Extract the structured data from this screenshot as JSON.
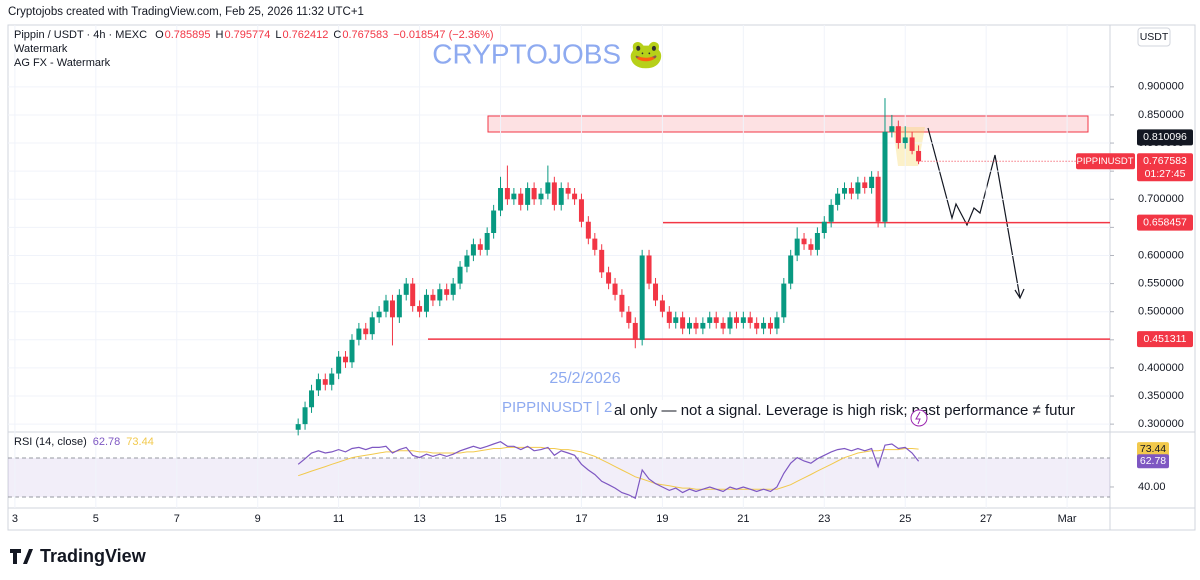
{
  "header": {
    "caption": "Cryptojobs created with TradingView.com, Feb 25, 2026 11:32 UTC+1"
  },
  "chart_data": {
    "type": "candlestick",
    "symbol": "Pippin / USDT · 4h · MEXC",
    "ohlc_letters": [
      "O",
      "H",
      "L",
      "C"
    ],
    "change_label": "−0.018547 (−2.36%)",
    "indicators_text": [
      "Watermark",
      "AG FX - Watermark"
    ],
    "watermark": "CRYPTOJOBS 🐸",
    "date_text": "25/2/2026",
    "symbol_text": "PIPPINUSDT | 2",
    "disclaimer": "al only — not a signal. Leverage is high risk; past performance ≠ futur",
    "currency": "USDT",
    "symbol_badge": "PIPPINUSDT",
    "countdown": "01:27:45",
    "marker_price": 0.810096,
    "levels": [
      0.658457,
      0.451311
    ],
    "level_color": "#f23645",
    "up_color": "#089981",
    "down_color": "#f23645",
    "x": [
      10,
      10.17,
      10.33,
      10.5,
      10.67,
      10.83,
      11,
      11.17,
      11.33,
      11.5,
      11.67,
      11.83,
      12,
      12.17,
      12.33,
      12.5,
      12.67,
      12.83,
      13,
      13.17,
      13.33,
      13.5,
      13.67,
      13.83,
      14,
      14.17,
      14.33,
      14.5,
      14.67,
      14.83,
      15,
      15.17,
      15.33,
      15.5,
      15.67,
      15.83,
      16,
      16.17,
      16.33,
      16.5,
      16.67,
      16.83,
      17,
      17.17,
      17.33,
      17.5,
      17.67,
      17.83,
      18,
      18.17,
      18.33,
      18.5,
      18.67,
      18.83,
      19,
      19.17,
      19.33,
      19.5,
      19.67,
      19.83,
      20,
      20.17,
      20.33,
      20.5,
      20.67,
      20.83,
      21,
      21.17,
      21.33,
      21.5,
      21.67,
      21.83,
      22,
      22.17,
      22.33,
      22.5,
      22.67,
      22.83,
      23,
      23.17,
      23.33,
      23.5,
      23.67,
      23.83,
      24,
      24.17,
      24.33,
      24.5,
      24.67,
      24.83,
      25,
      25.17,
      25.33
    ],
    "candles": [
      [
        0.29,
        0.31,
        0.28,
        0.3
      ],
      [
        0.3,
        0.34,
        0.29,
        0.33
      ],
      [
        0.33,
        0.37,
        0.32,
        0.36
      ],
      [
        0.36,
        0.39,
        0.35,
        0.38
      ],
      [
        0.38,
        0.39,
        0.36,
        0.37
      ],
      [
        0.37,
        0.4,
        0.36,
        0.39
      ],
      [
        0.39,
        0.43,
        0.38,
        0.42
      ],
      [
        0.42,
        0.43,
        0.4,
        0.41
      ],
      [
        0.41,
        0.46,
        0.4,
        0.45
      ],
      [
        0.45,
        0.48,
        0.44,
        0.47
      ],
      [
        0.47,
        0.48,
        0.45,
        0.46
      ],
      [
        0.46,
        0.5,
        0.45,
        0.49
      ],
      [
        0.49,
        0.51,
        0.48,
        0.5
      ],
      [
        0.5,
        0.53,
        0.49,
        0.52
      ],
      [
        0.52,
        0.53,
        0.44,
        0.49
      ],
      [
        0.49,
        0.54,
        0.48,
        0.53
      ],
      [
        0.53,
        0.56,
        0.52,
        0.55
      ],
      [
        0.55,
        0.56,
        0.5,
        0.51
      ],
      [
        0.51,
        0.52,
        0.49,
        0.5
      ],
      [
        0.5,
        0.54,
        0.49,
        0.53
      ],
      [
        0.53,
        0.54,
        0.51,
        0.52
      ],
      [
        0.52,
        0.55,
        0.51,
        0.54
      ],
      [
        0.54,
        0.55,
        0.52,
        0.53
      ],
      [
        0.53,
        0.56,
        0.52,
        0.55
      ],
      [
        0.55,
        0.59,
        0.54,
        0.58
      ],
      [
        0.58,
        0.61,
        0.57,
        0.6
      ],
      [
        0.6,
        0.63,
        0.59,
        0.62
      ],
      [
        0.62,
        0.63,
        0.6,
        0.61
      ],
      [
        0.61,
        0.65,
        0.6,
        0.64
      ],
      [
        0.64,
        0.69,
        0.63,
        0.68
      ],
      [
        0.68,
        0.74,
        0.67,
        0.72
      ],
      [
        0.72,
        0.76,
        0.69,
        0.7
      ],
      [
        0.7,
        0.72,
        0.69,
        0.71
      ],
      [
        0.71,
        0.72,
        0.68,
        0.69
      ],
      [
        0.69,
        0.73,
        0.68,
        0.72
      ],
      [
        0.72,
        0.73,
        0.69,
        0.7
      ],
      [
        0.7,
        0.72,
        0.69,
        0.71
      ],
      [
        0.71,
        0.76,
        0.7,
        0.73
      ],
      [
        0.73,
        0.74,
        0.68,
        0.69
      ],
      [
        0.69,
        0.73,
        0.68,
        0.72
      ],
      [
        0.72,
        0.73,
        0.7,
        0.71
      ],
      [
        0.71,
        0.72,
        0.69,
        0.7
      ],
      [
        0.7,
        0.71,
        0.65,
        0.66
      ],
      [
        0.66,
        0.67,
        0.62,
        0.63
      ],
      [
        0.63,
        0.64,
        0.6,
        0.61
      ],
      [
        0.61,
        0.62,
        0.56,
        0.57
      ],
      [
        0.57,
        0.58,
        0.54,
        0.55
      ],
      [
        0.55,
        0.56,
        0.52,
        0.53
      ],
      [
        0.53,
        0.54,
        0.49,
        0.5
      ],
      [
        0.5,
        0.51,
        0.47,
        0.48
      ],
      [
        0.48,
        0.49,
        0.435,
        0.45
      ],
      [
        0.45,
        0.61,
        0.44,
        0.6
      ],
      [
        0.6,
        0.61,
        0.54,
        0.55
      ],
      [
        0.55,
        0.56,
        0.51,
        0.52
      ],
      [
        0.52,
        0.53,
        0.49,
        0.5
      ],
      [
        0.5,
        0.51,
        0.47,
        0.48
      ],
      [
        0.48,
        0.5,
        0.47,
        0.49
      ],
      [
        0.49,
        0.5,
        0.46,
        0.47
      ],
      [
        0.47,
        0.49,
        0.46,
        0.48
      ],
      [
        0.48,
        0.49,
        0.46,
        0.47
      ],
      [
        0.47,
        0.49,
        0.46,
        0.48
      ],
      [
        0.48,
        0.5,
        0.47,
        0.49
      ],
      [
        0.49,
        0.5,
        0.47,
        0.48
      ],
      [
        0.48,
        0.49,
        0.46,
        0.47
      ],
      [
        0.47,
        0.5,
        0.46,
        0.49
      ],
      [
        0.49,
        0.5,
        0.47,
        0.48
      ],
      [
        0.48,
        0.5,
        0.47,
        0.49
      ],
      [
        0.49,
        0.5,
        0.47,
        0.48
      ],
      [
        0.48,
        0.49,
        0.46,
        0.47
      ],
      [
        0.47,
        0.49,
        0.46,
        0.48
      ],
      [
        0.48,
        0.49,
        0.46,
        0.47
      ],
      [
        0.47,
        0.5,
        0.46,
        0.49
      ],
      [
        0.49,
        0.56,
        0.48,
        0.55
      ],
      [
        0.55,
        0.61,
        0.54,
        0.6
      ],
      [
        0.6,
        0.65,
        0.59,
        0.63
      ],
      [
        0.63,
        0.64,
        0.61,
        0.62
      ],
      [
        0.62,
        0.63,
        0.6,
        0.61
      ],
      [
        0.61,
        0.65,
        0.6,
        0.64
      ],
      [
        0.64,
        0.67,
        0.63,
        0.66
      ],
      [
        0.66,
        0.7,
        0.65,
        0.69
      ],
      [
        0.69,
        0.72,
        0.68,
        0.71
      ],
      [
        0.71,
        0.73,
        0.7,
        0.72
      ],
      [
        0.72,
        0.73,
        0.7,
        0.71
      ],
      [
        0.71,
        0.74,
        0.7,
        0.73
      ],
      [
        0.73,
        0.74,
        0.71,
        0.72
      ],
      [
        0.72,
        0.75,
        0.71,
        0.74
      ],
      [
        0.74,
        0.75,
        0.65,
        0.66
      ],
      [
        0.66,
        0.88,
        0.65,
        0.82
      ],
      [
        0.82,
        0.85,
        0.81,
        0.83
      ],
      [
        0.83,
        0.84,
        0.79,
        0.8
      ],
      [
        0.8,
        0.83,
        0.79,
        0.81
      ],
      [
        0.81,
        0.82,
        0.78,
        0.786
      ],
      [
        0.785895,
        0.795774,
        0.762412,
        0.767583
      ]
    ],
    "xlim": [
      2.83,
      30.06
    ],
    "xticks": [
      3,
      5,
      7,
      9,
      11,
      13,
      15,
      17,
      19,
      21,
      23,
      25,
      27,
      {
        "value": 29,
        "label": "Mar"
      }
    ],
    "ylim": [
      0.286,
      1.01
    ],
    "yticks": [
      {
        "value": 0.3,
        "label": "0.300000"
      },
      {
        "value": 0.35,
        "label": "0.350000"
      },
      {
        "value": 0.4,
        "label": "0.400000"
      },
      {
        "value": 0.45,
        "label": "0.450000"
      },
      {
        "value": 0.5,
        "label": "0.500000"
      },
      {
        "value": 0.55,
        "label": "0.550000"
      },
      {
        "value": 0.6,
        "label": "0.600000"
      },
      {
        "value": 0.65,
        "label": "0.650000"
      },
      {
        "value": 0.7,
        "label": "0.700000"
      },
      {
        "value": 0.75,
        "label": "0.750000"
      },
      {
        "value": 0.8,
        "label": "0.800000"
      },
      {
        "value": 0.85,
        "label": "0.850000"
      },
      {
        "value": 0.9,
        "label": "0.900000"
      }
    ],
    "rsi": {
      "title": "RSI (14, close)",
      "color": "#7e57c2",
      "ma_color": "#f2c94c",
      "values": [
        60,
        65,
        70,
        72,
        70,
        71,
        73,
        71,
        74,
        75,
        73,
        75,
        75,
        76,
        70,
        73,
        75,
        68,
        66,
        69,
        67,
        69,
        67,
        69,
        72,
        74,
        76,
        74,
        76,
        78,
        80,
        76,
        76,
        73,
        76,
        72,
        73,
        75,
        68,
        72,
        70,
        68,
        60,
        55,
        51,
        45,
        42,
        39,
        35,
        33,
        30,
        55,
        47,
        43,
        40,
        37,
        39,
        35,
        38,
        36,
        38,
        40,
        38,
        36,
        40,
        38,
        40,
        38,
        36,
        38,
        36,
        40,
        52,
        61,
        66,
        63,
        61,
        65,
        68,
        71,
        73,
        74,
        72,
        74,
        72,
        74,
        58,
        77,
        78,
        74,
        75,
        70,
        62.78
      ],
      "ma": [
        50,
        52,
        54,
        56,
        58,
        60,
        62,
        64,
        66,
        67,
        68,
        69,
        70,
        71,
        71,
        72,
        72,
        72,
        71,
        71,
        70,
        70,
        70,
        70,
        70,
        71,
        71,
        72,
        73,
        74,
        74,
        75,
        75,
        75,
        75,
        75,
        75,
        74,
        74,
        73,
        73,
        72,
        71,
        69,
        67,
        64,
        61,
        58,
        55,
        52,
        49,
        47,
        45,
        43,
        42,
        41,
        40,
        39,
        39,
        38,
        38,
        38,
        38,
        38,
        38,
        38,
        38,
        38,
        38,
        38,
        38,
        38,
        40,
        42,
        45,
        48,
        51,
        54,
        57,
        60,
        63,
        66,
        68,
        70,
        71,
        72,
        72,
        73,
        73,
        73,
        74,
        74,
        73.44
      ],
      "ylim": [
        21.4,
        88.6
      ],
      "yticks": [
        {
          "value": 40,
          "label": "40.00"
        }
      ]
    }
  },
  "footer": {
    "brand": "TradingView"
  }
}
